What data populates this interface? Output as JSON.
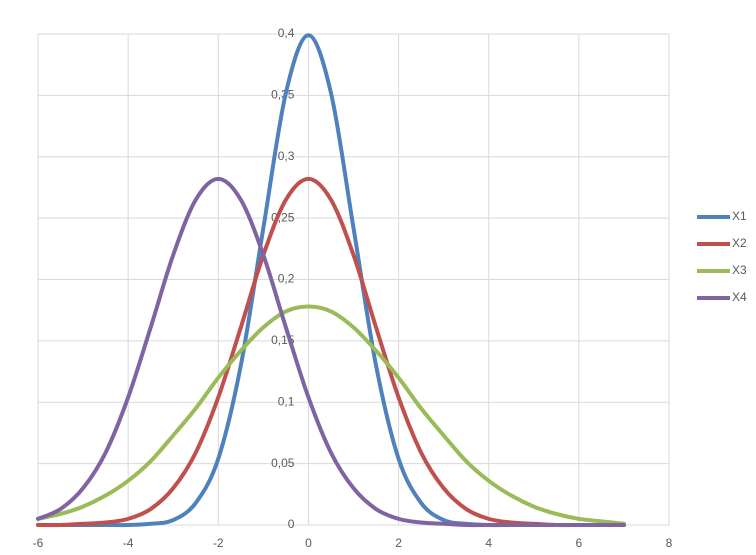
{
  "chart_data": {
    "type": "line",
    "x": [
      -6,
      -5.5,
      -5,
      -4.5,
      -4,
      -3.5,
      -3,
      -2.5,
      -2,
      -1.5,
      -1,
      -0.5,
      0,
      0.5,
      1,
      1.5,
      2,
      2.5,
      3,
      3.5,
      4,
      4.5,
      5,
      5.5,
      6,
      6.5,
      7
    ],
    "series": [
      {
        "name": "X1",
        "color": "#4f81bd",
        "values": [
          0,
          0,
          0,
          0,
          0,
          0.001,
          0.004,
          0.018,
          0.054,
          0.13,
          0.242,
          0.352,
          0.399,
          0.352,
          0.242,
          0.13,
          0.054,
          0.018,
          0.004,
          0.001,
          0,
          0,
          0,
          0,
          0,
          0,
          0
        ]
      },
      {
        "name": "X2",
        "color": "#c0504d",
        "values": [
          0,
          0,
          0.001,
          0.002,
          0.005,
          0.013,
          0.03,
          0.059,
          0.104,
          0.161,
          0.22,
          0.265,
          0.282,
          0.265,
          0.22,
          0.161,
          0.104,
          0.059,
          0.03,
          0.013,
          0.005,
          0.002,
          0.001,
          0,
          0,
          0,
          0
        ]
      },
      {
        "name": "X3",
        "color": "#9bbb59",
        "values": [
          0.005,
          0.009,
          0.015,
          0.024,
          0.036,
          0.052,
          0.073,
          0.095,
          0.12,
          0.142,
          0.161,
          0.174,
          0.178,
          0.174,
          0.161,
          0.142,
          0.12,
          0.095,
          0.073,
          0.052,
          0.036,
          0.024,
          0.015,
          0.009,
          0.005,
          0.003,
          0.001
        ]
      },
      {
        "name": "X4",
        "color": "#8064a2",
        "values": [
          0.005,
          0.013,
          0.03,
          0.059,
          0.104,
          0.161,
          0.22,
          0.265,
          0.282,
          0.265,
          0.22,
          0.161,
          0.104,
          0.059,
          0.03,
          0.013,
          0.005,
          0.002,
          0.001,
          0,
          0,
          0,
          0,
          0,
          0,
          0,
          0
        ]
      }
    ],
    "xlim": [
      -6,
      8
    ],
    "xticks": [
      -6,
      -4,
      -2,
      0,
      2,
      4,
      6,
      8
    ],
    "ylim": [
      0,
      0.4
    ],
    "yticks": [
      0,
      {
        "value": 0.05,
        "label": "0,05"
      },
      {
        "value": 0.1,
        "label": "0,1"
      },
      {
        "value": 0.15,
        "label": "0,15"
      },
      {
        "value": 0.2,
        "label": "0,2"
      },
      {
        "value": 0.25,
        "label": "0,25"
      },
      {
        "value": 0.3,
        "label": "0,3"
      },
      {
        "value": 0.35,
        "label": "0,35"
      },
      {
        "value": 0.4,
        "label": "0,4"
      }
    ],
    "grid": true,
    "legend": "right"
  }
}
